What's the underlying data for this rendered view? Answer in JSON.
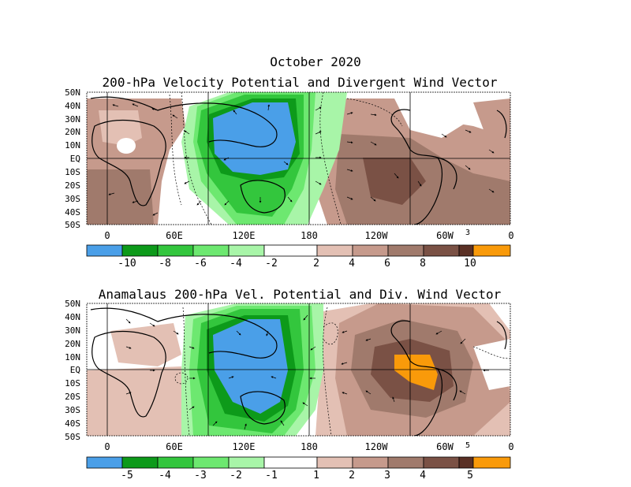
{
  "figure": {
    "month_title": "October 2020"
  },
  "colors": {
    "blue": "#4a9fe8",
    "dark_green": "#0d9a1a",
    "green": "#33c63d",
    "med_green": "#6de870",
    "light_green": "#a8f5a8",
    "white": "#ffffff",
    "tan": "#e3c0b4",
    "light_brown": "#c69a8c",
    "med_brown": "#a07a6c",
    "dark_brown": "#7a5145",
    "darkest_brown": "#5a3025",
    "orange": "#f99a0a"
  },
  "panels": [
    {
      "title": "200-hPa Velocity Potential and Divergent Wind Vector",
      "lat_labels": [
        "50N",
        "40N",
        "30N",
        "20N",
        "10N",
        "EQ",
        "10S",
        "20S",
        "30S",
        "40S",
        "50S"
      ],
      "lon_labels": [
        "0",
        "60E",
        "120E",
        "180",
        "120W",
        "60W",
        "0"
      ],
      "vector_scale": "3",
      "colorbar_labels": [
        "-10",
        "-8",
        "-6",
        "-4",
        "-2",
        "2",
        "4",
        "6",
        "8",
        "10"
      ],
      "colorbar_colors": [
        "#4a9fe8",
        "#0d9a1a",
        "#33c63d",
        "#6de870",
        "#a8f5a8",
        "#ffffff",
        "#e3c0b4",
        "#c69a8c",
        "#a07a6c",
        "#7a5145",
        "#5a3025",
        "#f99a0a"
      ]
    },
    {
      "title": "Anamalaus 200-hPa Vel. Potential and Div. Wind Vector",
      "lat_labels": [
        "50N",
        "40N",
        "30N",
        "20N",
        "10N",
        "EQ",
        "10S",
        "20S",
        "30S",
        "40S",
        "50S"
      ],
      "lon_labels": [
        "0",
        "60E",
        "120E",
        "180",
        "120W",
        "60W",
        "0"
      ],
      "vector_scale": "5",
      "colorbar_labels": [
        "-5",
        "-4",
        "-3",
        "-2",
        "-1",
        "1",
        "2",
        "3",
        "4",
        "5"
      ],
      "colorbar_colors": [
        "#4a9fe8",
        "#0d9a1a",
        "#33c63d",
        "#6de870",
        "#a8f5a8",
        "#ffffff",
        "#e3c0b4",
        "#c69a8c",
        "#a07a6c",
        "#7a5145",
        "#5a3025",
        "#f99a0a"
      ]
    }
  ]
}
